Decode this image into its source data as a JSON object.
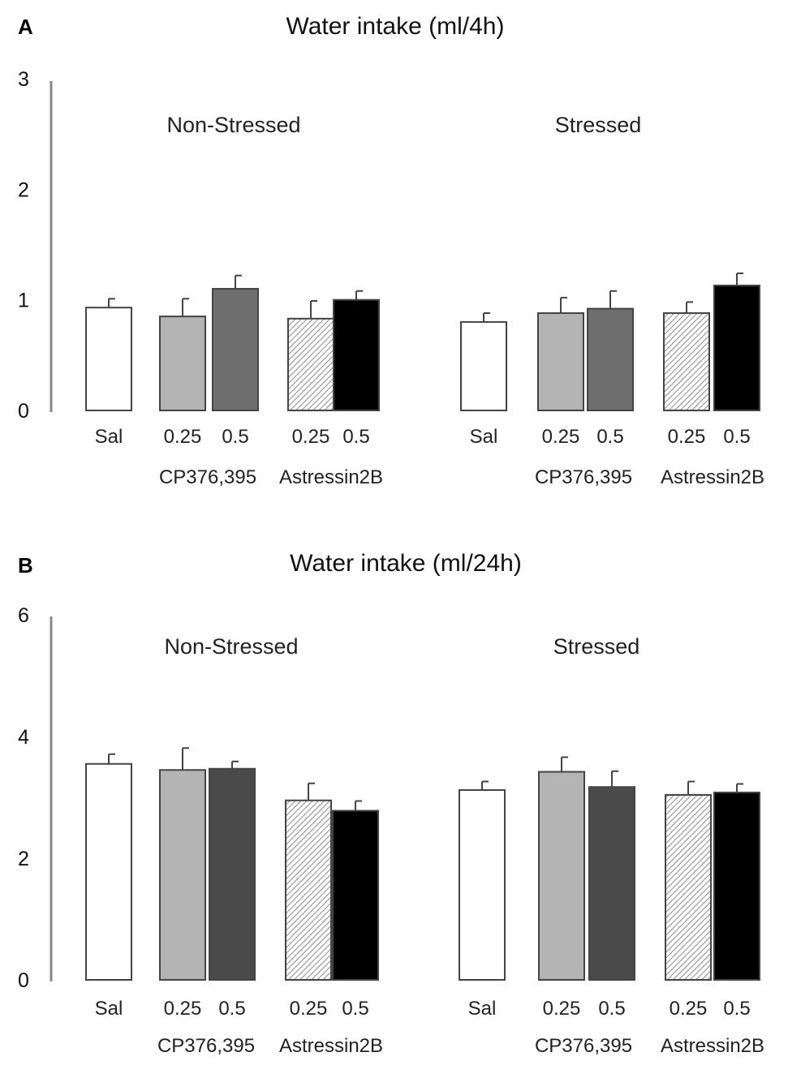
{
  "chart_data": [
    {
      "type": "bar",
      "panel": "A",
      "title": "Water intake  (ml/4h)",
      "ylim": [
        0,
        3
      ],
      "yticks": [
        "0",
        "1",
        "2",
        "3"
      ],
      "groups": [
        {
          "name": "Non-Stressed",
          "categories": [
            "Sal",
            "0.25",
            "0.5",
            "0.25",
            "0.5"
          ],
          "drug_labels": [
            "CP376,395",
            "Astressin2B"
          ],
          "values": [
            0.93,
            0.85,
            1.1,
            0.83,
            1.0
          ],
          "errors": [
            0.08,
            0.16,
            0.12,
            0.16,
            0.08
          ]
        },
        {
          "name": "Stressed",
          "categories": [
            "Sal",
            "0.25",
            "0.5",
            "0.25",
            "0.5"
          ],
          "drug_labels": [
            "CP376,395",
            "Astressin2B"
          ],
          "values": [
            0.8,
            0.88,
            0.92,
            0.88,
            1.13
          ],
          "errors": [
            0.08,
            0.14,
            0.16,
            0.1,
            0.11
          ]
        }
      ],
      "fills": [
        "#ffffff",
        "#b4b4b4",
        "#6e6e6e",
        "hatch",
        "#000000"
      ]
    },
    {
      "type": "bar",
      "panel": "B",
      "title": "Water intake  (ml/24h)",
      "ylim": [
        0,
        6
      ],
      "yticks": [
        "0",
        "2",
        "4",
        "6"
      ],
      "groups": [
        {
          "name": "Non-Stressed",
          "categories": [
            "Sal",
            "0.25",
            "0.5",
            "0.25",
            "0.5"
          ],
          "drug_labels": [
            "CP376,395",
            "Astressin2B"
          ],
          "values": [
            3.55,
            3.45,
            3.47,
            2.95,
            2.78
          ],
          "errors": [
            0.16,
            0.36,
            0.12,
            0.28,
            0.16
          ]
        },
        {
          "name": "Stressed",
          "categories": [
            "Sal",
            "0.25",
            "0.5",
            "0.25",
            "0.5"
          ],
          "drug_labels": [
            "CP376,395",
            "Astressin2B"
          ],
          "values": [
            3.12,
            3.42,
            3.17,
            3.04,
            3.08
          ],
          "errors": [
            0.14,
            0.24,
            0.26,
            0.22,
            0.14
          ]
        }
      ],
      "fills": [
        "#ffffff",
        "#b4b4b4",
        "#4a4a4a",
        "hatch",
        "#000000"
      ]
    }
  ]
}
